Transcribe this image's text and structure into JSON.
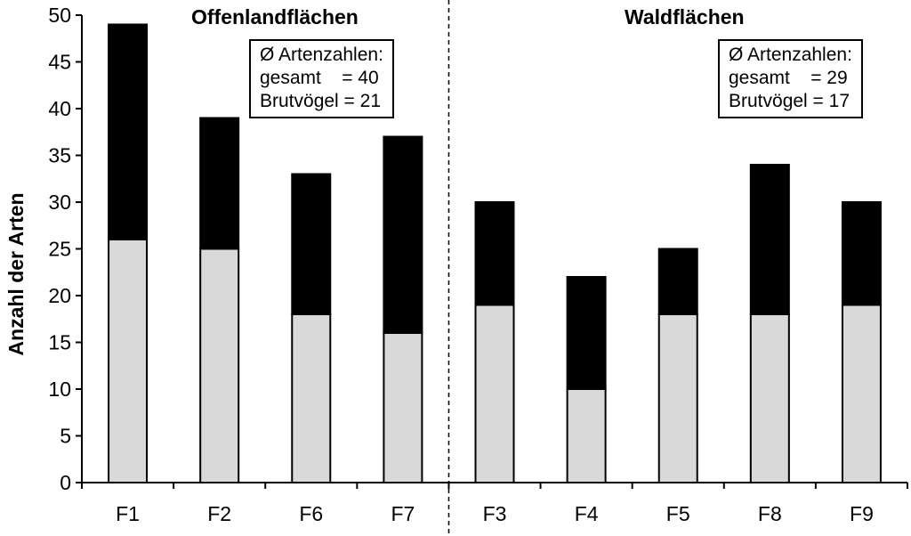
{
  "chart_data": {
    "type": "bar",
    "stacked": true,
    "categories": [
      "F1",
      "F2",
      "F6",
      "F7",
      "F3",
      "F4",
      "F5",
      "F8",
      "F9"
    ],
    "series": [
      {
        "values": [
          26,
          25,
          18,
          16,
          19,
          10,
          18,
          18,
          19
        ],
        "color": "#d9d9d9"
      },
      {
        "values": [
          23,
          14,
          15,
          21,
          11,
          12,
          7,
          16,
          11
        ],
        "color": "#000000"
      }
    ],
    "totals": [
      49,
      39,
      33,
      37,
      30,
      22,
      25,
      34,
      30
    ],
    "ylabel": "Anzahl der Arten",
    "ylim": [
      0,
      50
    ],
    "yticks": [
      0,
      5,
      10,
      15,
      20,
      25,
      30,
      35,
      40,
      45,
      50
    ],
    "grid": false,
    "groups": [
      {
        "title": "Offenlandflächen",
        "categories": [
          "F1",
          "F2",
          "F6",
          "F7"
        ],
        "box": [
          "Ø Artenzahlen:",
          "gesamt    = 40",
          "Brutvögel = 21"
        ]
      },
      {
        "title": "Waldflächen",
        "categories": [
          "F3",
          "F4",
          "F5",
          "F8",
          "F9"
        ],
        "box": [
          "Ø Artenzahlen:",
          "gesamt    = 29",
          "Brutvögel = 17"
        ]
      }
    ],
    "separator": "dashed vertical line between F7 and F3"
  }
}
